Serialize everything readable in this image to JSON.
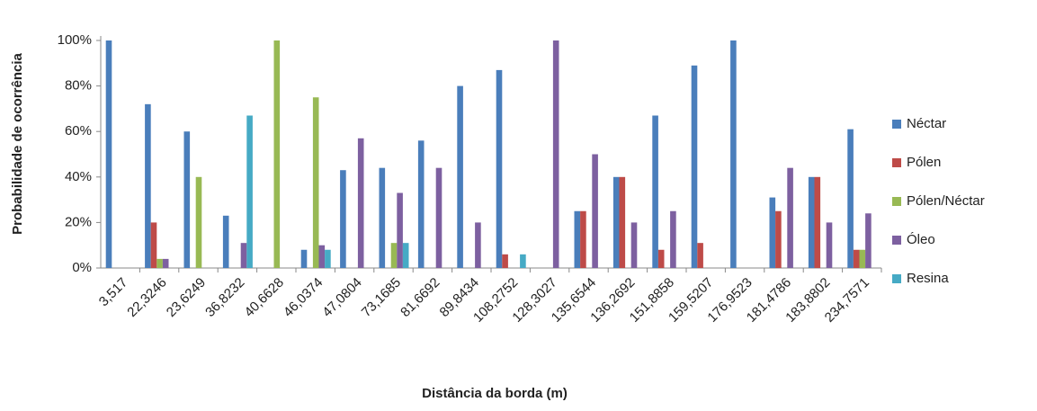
{
  "chart_data": {
    "type": "bar",
    "ylabel": "Probabilidade de ocorrência",
    "xlabel": "Distância da borda (m)",
    "categories": [
      "3,517",
      "22,3246",
      "23,6249",
      "36,8232",
      "40,6628",
      "46,0374",
      "47,0804",
      "73,1685",
      "81,6692",
      "89,8434",
      "108,2752",
      "128,3027",
      "135,6544",
      "136,2692",
      "151,8858",
      "159,5207",
      "176,9523",
      "181,4786",
      "183,8802",
      "234,7571"
    ],
    "series": [
      {
        "name": "Néctar",
        "color": "#4a7ebb",
        "values": [
          100,
          72,
          60,
          23,
          0,
          8,
          43,
          44,
          56,
          80,
          87,
          0,
          25,
          40,
          67,
          89,
          100,
          31,
          40,
          61
        ]
      },
      {
        "name": "Pólen",
        "color": "#be4b48",
        "values": [
          0,
          20,
          0,
          0,
          0,
          0,
          0,
          0,
          0,
          0,
          6,
          0,
          25,
          40,
          8,
          11,
          0,
          25,
          40,
          8
        ]
      },
      {
        "name": "Pólen/Néctar",
        "color": "#98b954",
        "values": [
          0,
          4,
          40,
          0,
          100,
          75,
          0,
          11,
          0,
          0,
          0,
          0,
          0,
          0,
          0,
          0,
          0,
          0,
          0,
          8
        ]
      },
      {
        "name": "Óleo",
        "color": "#7d60a0",
        "values": [
          0,
          4,
          0,
          11,
          0,
          10,
          57,
          33,
          44,
          20,
          0,
          100,
          50,
          20,
          25,
          0,
          0,
          44,
          20,
          24
        ]
      },
      {
        "name": "Resina",
        "color": "#46aac5",
        "values": [
          0,
          0,
          0,
          67,
          0,
          8,
          0,
          11,
          0,
          0,
          6,
          0,
          0,
          0,
          0,
          0,
          0,
          0,
          0,
          0
        ]
      }
    ],
    "ylim": [
      0,
      100
    ],
    "yticks": [
      {
        "value": 0,
        "label": "0%"
      },
      {
        "value": 20,
        "label": "20%"
      },
      {
        "value": 40,
        "label": "40%"
      },
      {
        "value": 60,
        "label": "60%"
      },
      {
        "value": 80,
        "label": "80%"
      },
      {
        "value": 100,
        "label": "100%"
      }
    ],
    "legend": "right"
  }
}
